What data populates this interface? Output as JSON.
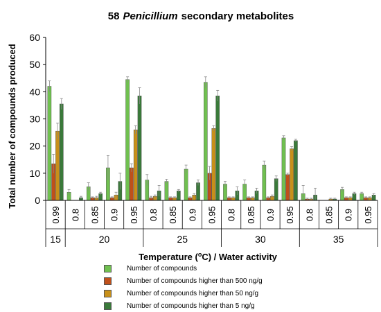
{
  "chart_data": {
    "type": "bar",
    "title_main": "58",
    "title_italic": "Penicillium",
    "title_rest": "secondary metabolites",
    "ylabel": "Total number of compounds produced",
    "xlabel_parts": [
      "Temperature (",
      "o",
      "C) / Water activity"
    ],
    "ylim": [
      0,
      60
    ],
    "yticks": [
      0,
      10,
      20,
      30,
      40,
      50,
      60
    ],
    "categories": [
      "0.99",
      "0.8",
      "0.85",
      "0.9",
      "0.95",
      "0.8",
      "0.85",
      "0.9",
      "0.95",
      "0.8",
      "0.85",
      "0.9",
      "0.95",
      "0.8",
      "0.85",
      "0.9",
      "0.95"
    ],
    "groups": [
      {
        "label": "15",
        "count": 1
      },
      {
        "label": "20",
        "count": 4
      },
      {
        "label": "25",
        "count": 4
      },
      {
        "label": "30",
        "count": 4
      },
      {
        "label": "35",
        "count": 4
      }
    ],
    "series": [
      {
        "name": "Number of compounds",
        "color": "#70c050",
        "values": [
          42,
          3,
          5,
          12,
          44.5,
          7.5,
          7,
          11.5,
          43.5,
          6,
          6,
          13,
          23,
          2.5,
          0,
          4,
          2.5
        ],
        "errors": [
          2,
          1,
          1.5,
          4.5,
          1,
          2,
          0.8,
          1.5,
          2,
          1,
          1.5,
          1.5,
          0.8,
          3,
          0,
          0.8,
          0.5
        ]
      },
      {
        "name": "Number of compounds higher than 500 ng/g",
        "color": "#c0501a",
        "values": [
          13.5,
          0,
          1,
          1,
          12,
          1,
          1,
          1,
          10,
          1,
          1,
          1,
          9.5,
          0.5,
          0,
          1,
          1
        ],
        "errors": [
          3.5,
          0,
          0.3,
          0.3,
          1.5,
          0.5,
          0.3,
          0.3,
          2.5,
          0.3,
          0.3,
          0.3,
          0.5,
          0.3,
          0,
          0.3,
          0.3
        ]
      },
      {
        "name": "Number of compounds higher than 50 ng/g",
        "color": "#c8901a",
        "values": [
          25.5,
          0,
          1,
          2,
          26,
          1.5,
          1,
          2,
          26.5,
          1,
          1,
          1.5,
          19,
          0.5,
          0.5,
          1,
          1
        ],
        "errors": [
          3,
          0,
          0.5,
          1,
          1.5,
          0.5,
          0.3,
          0.5,
          1,
          0.3,
          0.3,
          0.5,
          0.8,
          0.3,
          0.3,
          0.3,
          0.3
        ]
      },
      {
        "name": "Number of compounds higher than 5 ng/g",
        "color": "#3a7a3a",
        "values": [
          35.5,
          1,
          2.5,
          7,
          38.5,
          3.5,
          3.5,
          6.5,
          38.5,
          3.5,
          3.5,
          8,
          22,
          2,
          0.5,
          2.5,
          2
        ],
        "errors": [
          2,
          0.5,
          0.5,
          3,
          3,
          2,
          0.5,
          1,
          2,
          1.5,
          1,
          1,
          0.5,
          2.5,
          0.3,
          0.5,
          0.5
        ]
      }
    ]
  }
}
